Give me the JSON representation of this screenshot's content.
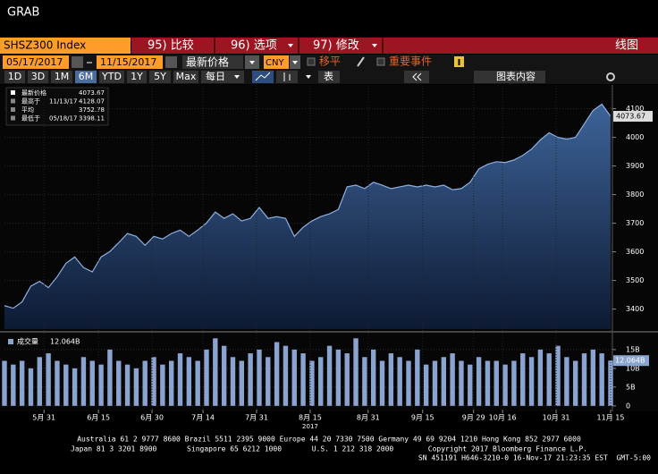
{
  "window_title": "GRAB",
  "toolbar": {
    "security": "SHSZ300 Index",
    "menu": [
      "95) 比较",
      "96) 选项",
      "97) 修改"
    ],
    "chart_type": "线图",
    "start_date": "05/17/2017",
    "end_date": "11/15/2017",
    "field": "最新价格",
    "currency": "CNY",
    "options": [
      "移平",
      "重要事件"
    ],
    "periods": [
      "1D",
      "3D",
      "1M",
      "6M",
      "YTD",
      "1Y",
      "5Y",
      "Max"
    ],
    "selected_period": "6M",
    "frequency": "每日",
    "table": "表",
    "chart_content": "图表内容"
  },
  "chart_data": [
    {
      "type": "area",
      "series": [
        {
          "name": "最新价格",
          "color": "#8fb0e0",
          "values": [
            3412,
            3403,
            3425,
            3480,
            3497,
            3475,
            3513,
            3560,
            3582,
            3545,
            3530,
            3582,
            3601,
            3632,
            3664,
            3654,
            3623,
            3654,
            3645,
            3664,
            3676,
            3654,
            3676,
            3701,
            3739,
            3717,
            3733,
            3708,
            3717,
            3755,
            3717,
            3723,
            3717,
            3654,
            3686,
            3708,
            3723,
            3733,
            3748,
            3827,
            3833,
            3821,
            3843,
            3833,
            3821,
            3827,
            3833,
            3827,
            3833,
            3827,
            3833,
            3817,
            3821,
            3843,
            3890,
            3906,
            3915,
            3912,
            3921,
            3937,
            3959,
            3991,
            4016,
            4000,
            3994,
            4000,
            4047,
            4094,
            4116,
            4073.67
          ]
        }
      ],
      "legend": [
        {
          "label": "最新价格",
          "value": 4073.67
        },
        {
          "label": "最高于",
          "date": "11/13/17",
          "value": 4128.07
        },
        {
          "label": "平均",
          "value": 3752.78
        },
        {
          "label": "最低于",
          "date": "05/18/17",
          "value": 3398.11
        }
      ],
      "xlim": [
        0,
        69
      ],
      "ylim": [
        3330,
        4180
      ],
      "yticks": [
        3400,
        3500,
        3600,
        3700,
        3800,
        3900,
        4000,
        4100
      ]
    },
    {
      "type": "bar",
      "series": [
        {
          "name": "成交量",
          "color": "#8aa3cf",
          "value_label": "12.064B",
          "values": [
            12,
            11,
            12,
            10,
            13,
            14,
            12,
            11,
            10,
            13,
            12,
            11,
            15,
            12,
            11,
            10,
            12,
            13,
            11,
            12,
            14,
            13,
            12,
            15,
            18,
            16,
            13,
            12,
            14,
            15,
            13,
            17,
            16,
            15,
            14,
            12,
            13,
            16,
            15,
            14,
            18,
            13,
            15,
            12,
            14,
            13,
            12,
            15,
            11,
            12,
            13,
            14,
            12,
            11,
            13,
            12,
            12,
            11,
            12,
            14,
            13,
            15,
            14,
            16,
            13,
            12,
            14,
            15,
            14,
            12.064
          ]
        }
      ],
      "xlim": [
        0,
        69
      ],
      "ylim": [
        -1,
        19.5
      ],
      "yticks": [
        0,
        {
          "value": 5,
          "label": "5B"
        },
        {
          "value": 10,
          "label": "10B"
        },
        {
          "value": 15,
          "label": "15B"
        }
      ],
      "xticks": [
        {
          "value": 4.5,
          "label": "5月 31"
        },
        {
          "value": 10.7,
          "label": "6月 15"
        },
        {
          "value": 16.8,
          "label": "6月 30"
        },
        {
          "value": 22.6,
          "label": "7月 14"
        },
        {
          "value": 28.7,
          "label": "7月 31"
        },
        {
          "value": 34.8,
          "label": "8月 15"
        },
        {
          "value": 41.4,
          "label": "8月 31"
        },
        {
          "value": 47.6,
          "label": "9月 15"
        },
        {
          "value": 53.4,
          "label": "9月 29"
        },
        {
          "value": 56.7,
          "label": "10月 16"
        },
        {
          "value": 62.8,
          "label": "10月 31"
        },
        {
          "value": 69,
          "label": "11月 15"
        }
      ],
      "year_label": "2017"
    }
  ],
  "footer": [
    "Australia 61 2 9777 8600 Brazil 5511 2395 9000 Europe 44 20 7330 7500 Germany 49 69 9204 1210 Hong Kong 852 2977 6000",
    "Japan 81 3 3201 8900       Singapore 65 6212 1000       U.S. 1 212 318 2000        Copyright 2017 Bloomberg Finance L.P.",
    "SN 451191 H646-3210-0 16-Nov-17 21:23:35 EST  GMT-5:00"
  ]
}
